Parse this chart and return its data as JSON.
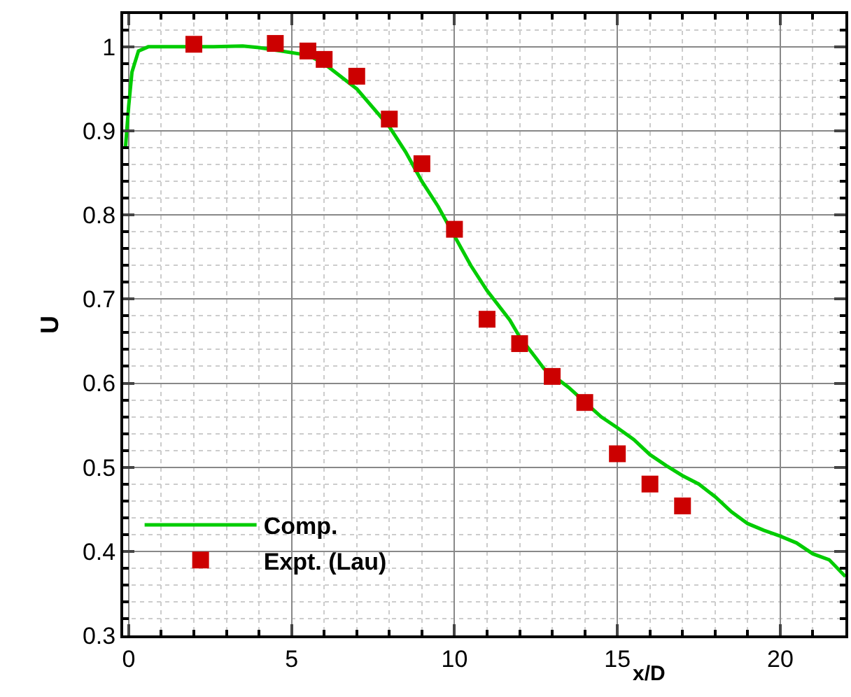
{
  "chart_data": {
    "type": "line",
    "xlabel": "x/D",
    "ylabel": "U",
    "xlim": [
      -0.17,
      22
    ],
    "ylim": [
      0.3,
      1.039
    ],
    "xticks": [
      0,
      5,
      10,
      15,
      20
    ],
    "yticks": [
      0.3,
      0.4,
      0.5,
      0.6,
      0.7,
      0.8,
      0.9,
      1
    ],
    "grid": true,
    "legend": "bottom left",
    "series": [
      {
        "name": "Comp.",
        "color": "#00cc00",
        "marker": "none",
        "line_style": "solid",
        "x": [
          -0.1,
          0,
          0.1,
          0.3,
          0.6,
          2.6,
          3.5,
          4.0,
          5.5,
          6,
          7,
          8,
          8.5,
          9,
          9.5,
          10,
          10.5,
          11,
          11.7,
          12,
          12.5,
          12.75,
          13.5,
          14.3,
          14.5,
          15,
          15.5,
          16,
          16.5,
          17,
          17.5,
          18,
          18.5,
          19,
          19.5,
          20,
          20.5,
          21,
          21.5,
          22
        ],
        "values": [
          0.88,
          0.93,
          0.97,
          0.995,
          1.0,
          1.0,
          1.001,
          0.999,
          0.99,
          0.98,
          0.95,
          0.905,
          0.875,
          0.84,
          0.81,
          0.775,
          0.74,
          0.71,
          0.675,
          0.655,
          0.63,
          0.617,
          0.595,
          0.567,
          0.56,
          0.547,
          0.533,
          0.515,
          0.502,
          0.49,
          0.48,
          0.465,
          0.447,
          0.433,
          0.425,
          0.418,
          0.41,
          0.397,
          0.39,
          0.37
        ]
      },
      {
        "name": "Expt. (Lau)",
        "color": "#cc0000",
        "type": "scatter",
        "marker": "square",
        "x": [
          2,
          4.5,
          5.5,
          6,
          7,
          8,
          9,
          10,
          11,
          12,
          13,
          14,
          15,
          16,
          17
        ],
        "values": [
          1.003,
          1.004,
          0.995,
          0.985,
          0.965,
          0.914,
          0.861,
          0.783,
          0.676,
          0.647,
          0.608,
          0.577,
          0.516,
          0.48,
          0.454
        ]
      }
    ]
  }
}
